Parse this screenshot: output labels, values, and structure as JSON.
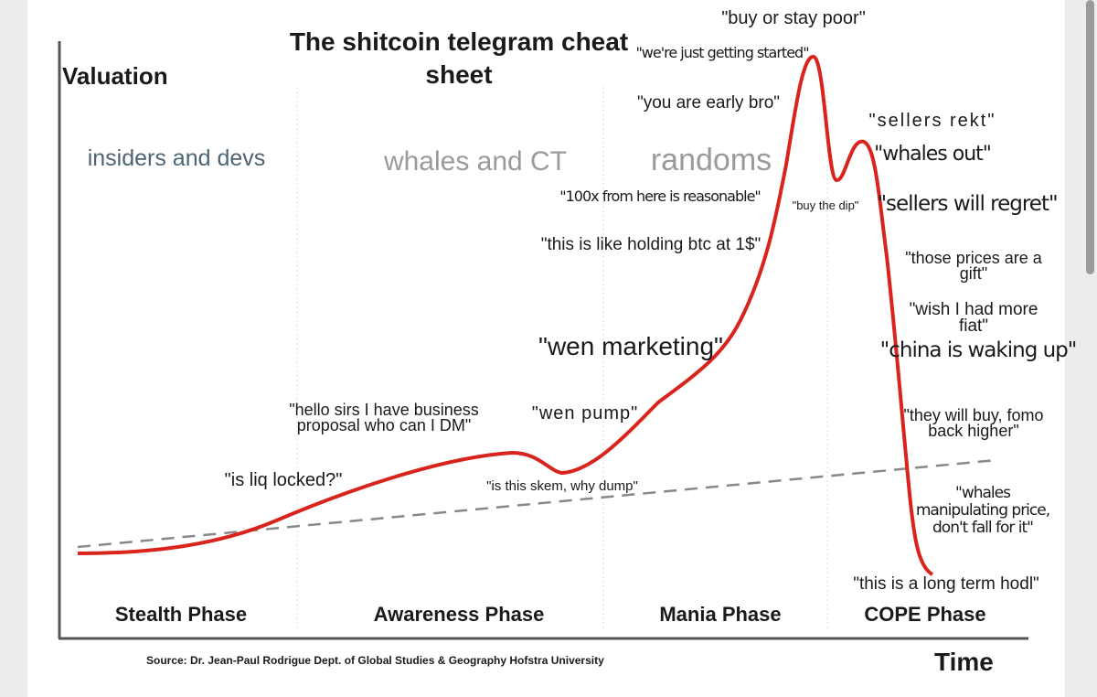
{
  "title": "The shitcoin telegram cheat sheet",
  "axis": {
    "y": "Valuation",
    "x": "Time"
  },
  "source": "Source: Dr. Jean-Paul Rodrigue Dept. of Global Studies & Geography Hofstra University",
  "phases": [
    "Stealth Phase",
    "Awareness Phase",
    "Mania Phase",
    "COPE Phase"
  ],
  "groups": [
    "insiders and devs",
    "whales and CT",
    "randoms"
  ],
  "quotes": [
    "\"buy or stay poor\"",
    "\"we're just getting started\"",
    "\"you are early bro\"",
    "\"sellers rekt\"",
    "\"whales out\"",
    "\"100x from here is reasonable\"",
    "\"buy the dip\"",
    "\"sellers will regret\"",
    "\"this is like holding btc at 1$\"",
    "\"those prices are a gift\"",
    "\"wish I had more fiat\"",
    "\"wen marketing\"",
    "\"china is waking up\"",
    "\"hello sirs I have business proposal who can I DM\"",
    "\"wen pump\"",
    "\"they will buy, fomo back higher\"",
    "\"is liq locked?\"",
    "\"is this skem, why dump\"",
    "\"whales manipulating price, don't fall for it\"",
    "\"this is a long term hodl\""
  ]
}
